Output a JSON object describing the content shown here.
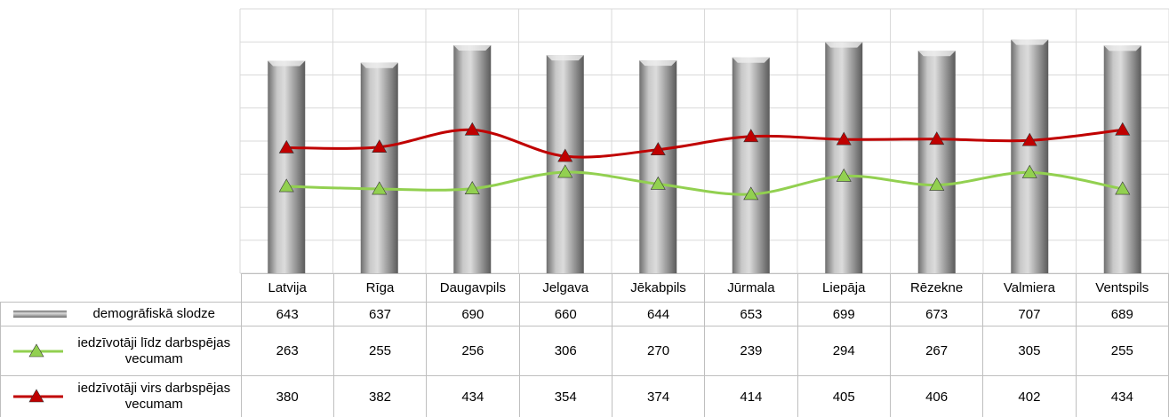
{
  "chart_data": {
    "type": "bar-line",
    "categories": [
      "Latvija",
      "Rīga",
      "Daugavpils",
      "Jelgava",
      "Jēkabpils",
      "Jūrmala",
      "Liepāja",
      "Rēzekne",
      "Valmiera",
      "Ventspils"
    ],
    "series": [
      {
        "name": "demogrāfiskā slodze",
        "type": "bar",
        "color": "#9b9b9b",
        "values": [
          643,
          637,
          690,
          660,
          644,
          653,
          699,
          673,
          707,
          689
        ]
      },
      {
        "name": "iedzīvotāji līdz darbspējas vecumam",
        "type": "line",
        "color": "#92d050",
        "values": [
          263,
          255,
          256,
          306,
          270,
          239,
          294,
          267,
          305,
          255
        ]
      },
      {
        "name": "iedzīvotāji virs darbspējas vecumam",
        "type": "line",
        "color": "#c00000",
        "values": [
          380,
          382,
          434,
          354,
          374,
          414,
          405,
          406,
          402,
          434
        ]
      }
    ],
    "ylim": [
      0,
      800
    ],
    "yticks": [
      0,
      100,
      200,
      300,
      400,
      500,
      600,
      700,
      800
    ],
    "grid": true
  }
}
